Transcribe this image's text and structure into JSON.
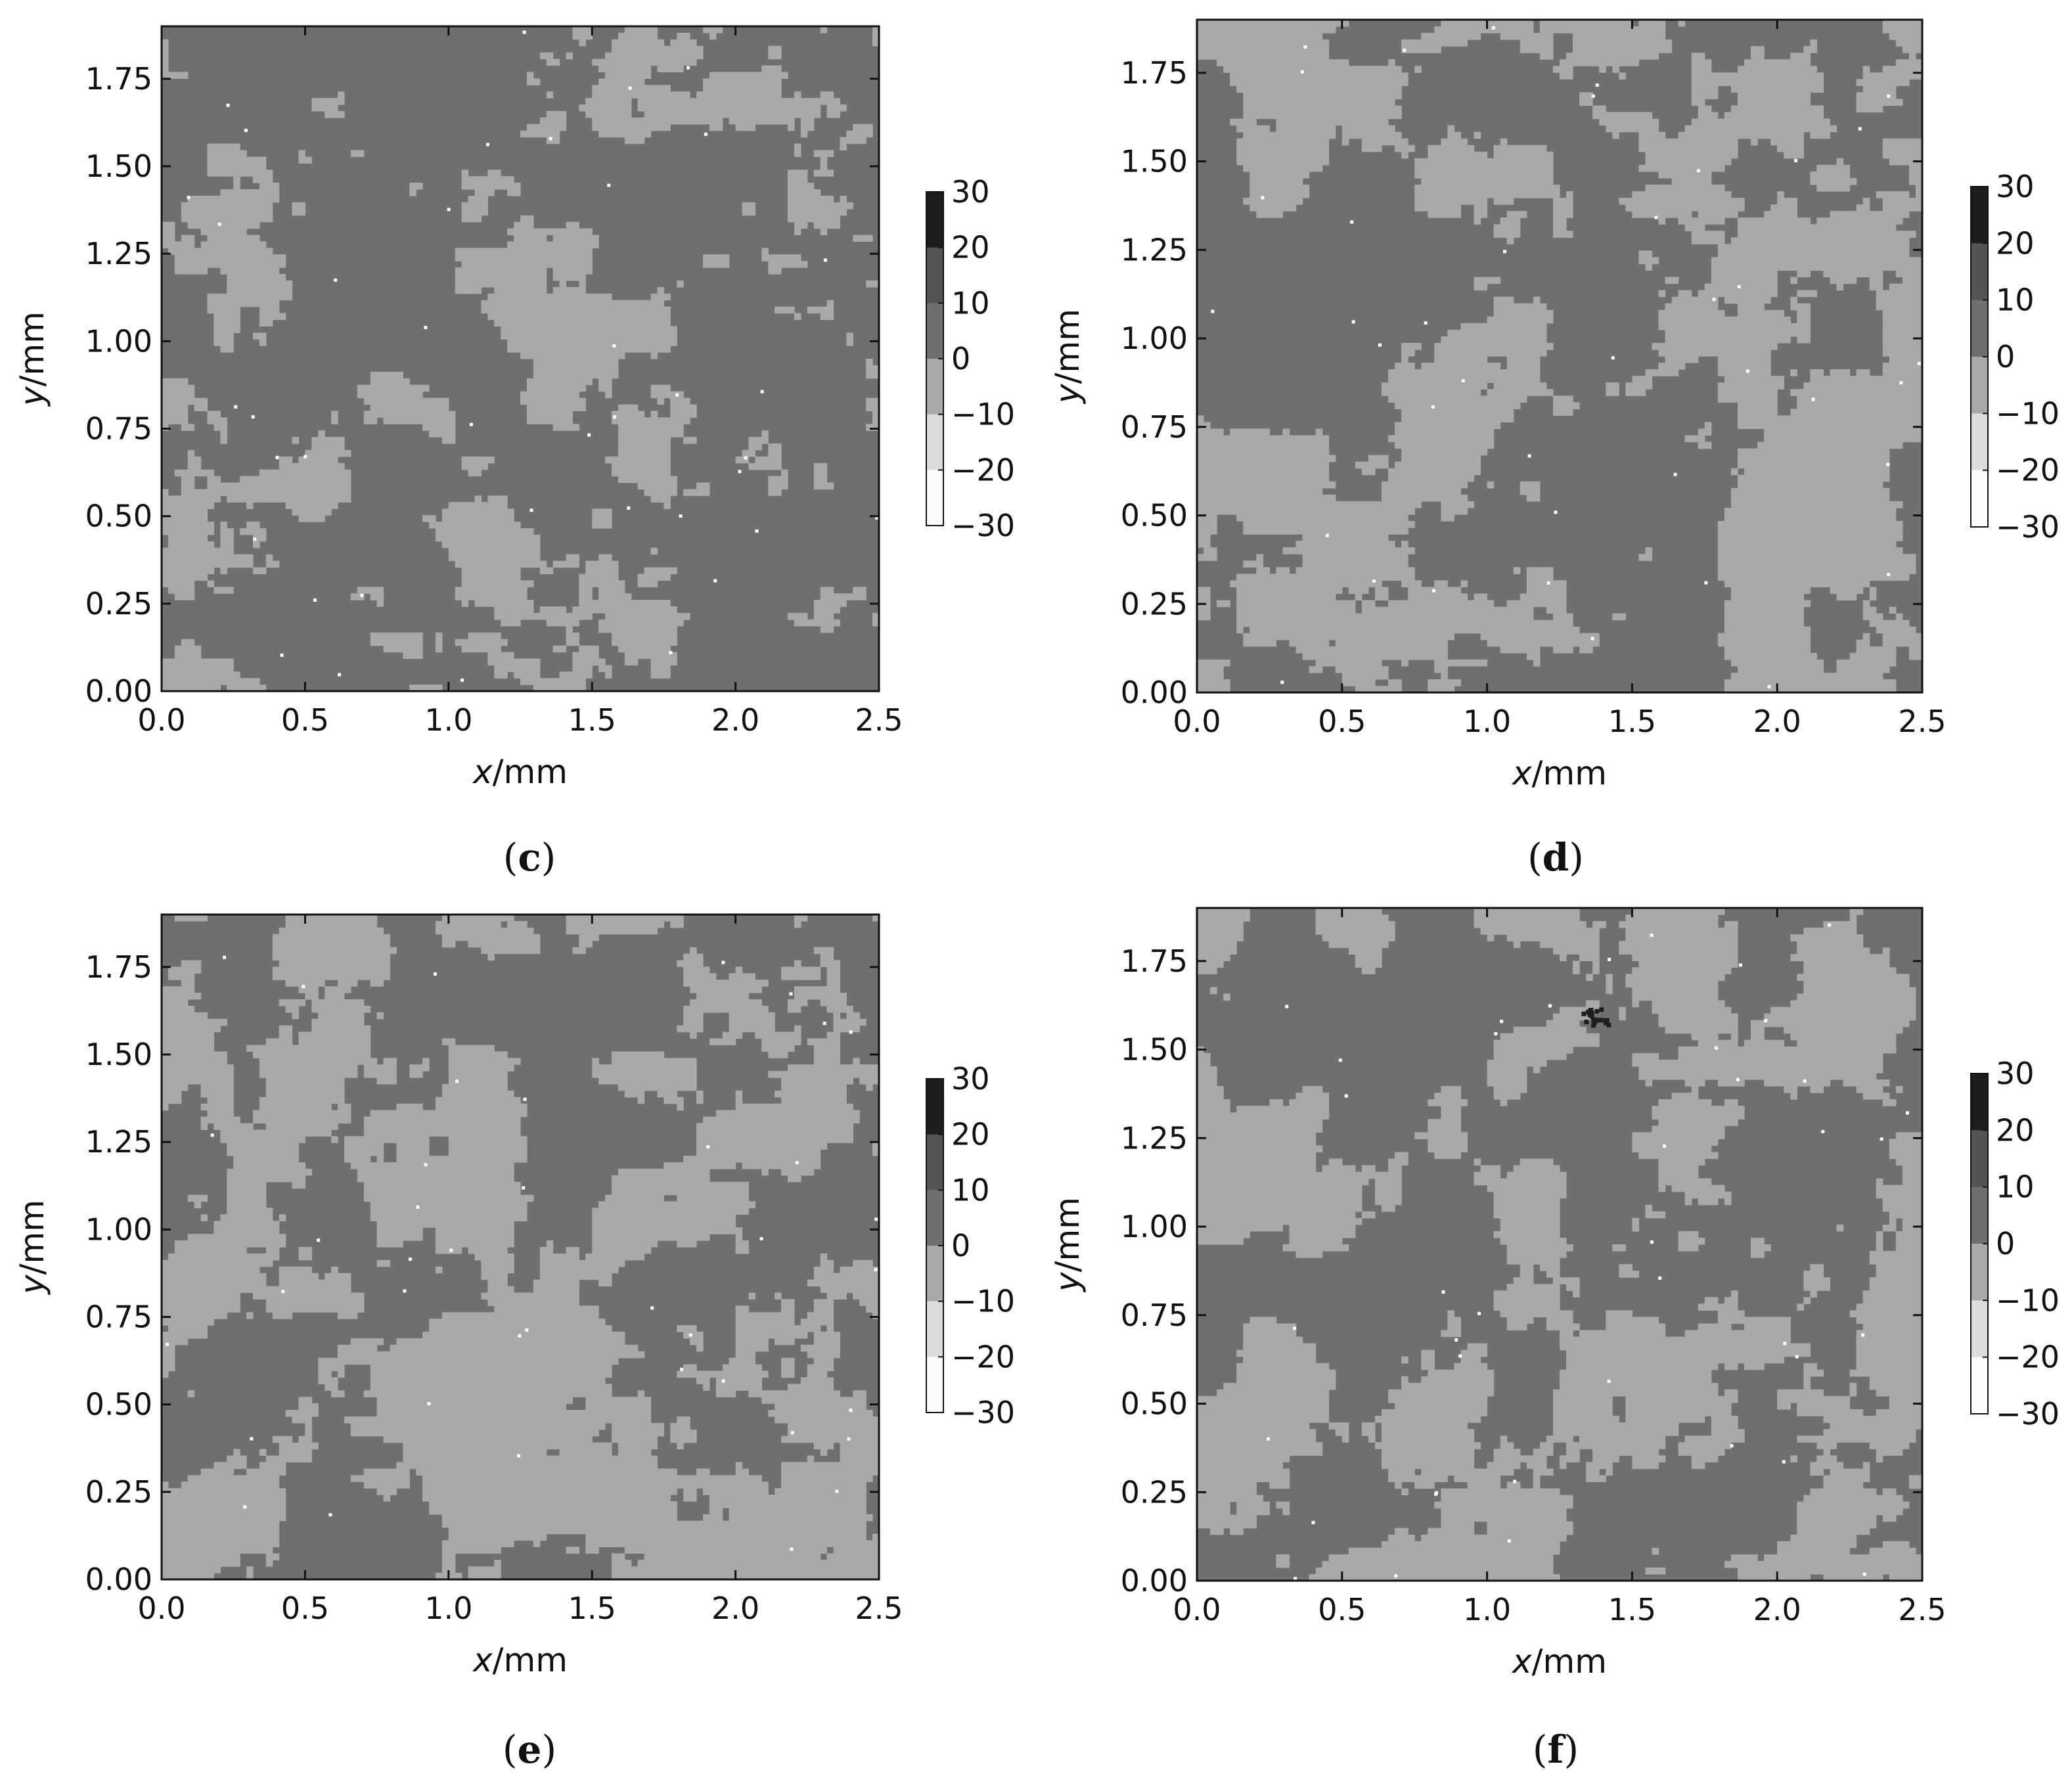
{
  "colors": {
    "background": "#ffffff",
    "axis": "#111111",
    "levels": [
      "#fbfbfb",
      "#dddddd",
      "#a9a9a9",
      "#6f6f6f",
      "#545454",
      "#1e1e1e"
    ]
  },
  "chart_data": [
    {
      "type": "heatmap",
      "caption": "(c)",
      "caption_letter": "c",
      "xlabel_var": "x",
      "xlabel_unit": "/mm",
      "ylabel_var": "y",
      "ylabel_unit": "/mm",
      "xlim": [
        0,
        2.5
      ],
      "ylim": [
        0,
        1.9
      ],
      "xticks": [
        "0.0",
        "0.5",
        "1.0",
        "1.5",
        "2.0",
        "2.5"
      ],
      "yticks": [
        "0.00",
        "0.25",
        "0.50",
        "0.75",
        "1.00",
        "1.25",
        "1.50",
        "1.75"
      ],
      "colorbar": {
        "levels": [
          -30,
          -20,
          -10,
          0,
          10,
          20,
          30
        ],
        "labels": [
          "30",
          "20",
          "10",
          "0",
          "−10",
          "−20",
          "−30"
        ]
      },
      "fraction_light": 0.25,
      "seed": 11
    },
    {
      "type": "heatmap",
      "caption": "(d)",
      "caption_letter": "d",
      "xlabel_var": "x",
      "xlabel_unit": "/mm",
      "ylabel_var": "y",
      "ylabel_unit": "/mm",
      "xlim": [
        0,
        2.5
      ],
      "ylim": [
        0,
        1.9
      ],
      "xticks": [
        "0.0",
        "0.5",
        "1.0",
        "1.5",
        "2.0",
        "2.5"
      ],
      "yticks": [
        "0.00",
        "0.25",
        "0.50",
        "0.75",
        "1.00",
        "1.25",
        "1.50",
        "1.75"
      ],
      "colorbar": {
        "levels": [
          -30,
          -20,
          -10,
          0,
          10,
          20,
          30
        ],
        "labels": [
          "30",
          "20",
          "10",
          "0",
          "−10",
          "−20",
          "−30"
        ]
      },
      "fraction_light": 0.45,
      "seed": 23
    },
    {
      "type": "heatmap",
      "caption": "(e)",
      "caption_letter": "e",
      "xlabel_var": "x",
      "xlabel_unit": "/mm",
      "ylabel_var": "y",
      "ylabel_unit": "/mm",
      "xlim": [
        0,
        2.5
      ],
      "ylim": [
        0,
        1.9
      ],
      "xticks": [
        "0.0",
        "0.5",
        "1.0",
        "1.5",
        "2.0",
        "2.5"
      ],
      "yticks": [
        "0.00",
        "0.25",
        "0.50",
        "0.75",
        "1.00",
        "1.25",
        "1.50",
        "1.75"
      ],
      "colorbar": {
        "levels": [
          -30,
          -20,
          -10,
          0,
          10,
          20,
          30
        ],
        "labels": [
          "30",
          "20",
          "10",
          "0",
          "−10",
          "−20",
          "−30"
        ]
      },
      "fraction_light": 0.5,
      "seed": 37
    },
    {
      "type": "heatmap",
      "caption": "(f)",
      "caption_letter": "f",
      "xlabel_var": "x",
      "xlabel_unit": "/mm",
      "ylabel_var": "y",
      "ylabel_unit": "/mm",
      "xlim": [
        0,
        2.5
      ],
      "ylim": [
        0,
        1.9
      ],
      "xticks": [
        "0.0",
        "0.5",
        "1.0",
        "1.5",
        "2.0",
        "2.5"
      ],
      "yticks": [
        "0.00",
        "0.25",
        "0.50",
        "0.75",
        "1.00",
        "1.25",
        "1.50",
        "1.75"
      ],
      "colorbar": {
        "levels": [
          -30,
          -20,
          -10,
          0,
          10,
          20,
          30
        ],
        "labels": [
          "30",
          "20",
          "10",
          "0",
          "−10",
          "−20",
          "−30"
        ]
      },
      "fraction_light": 0.42,
      "seed": 53
    }
  ]
}
